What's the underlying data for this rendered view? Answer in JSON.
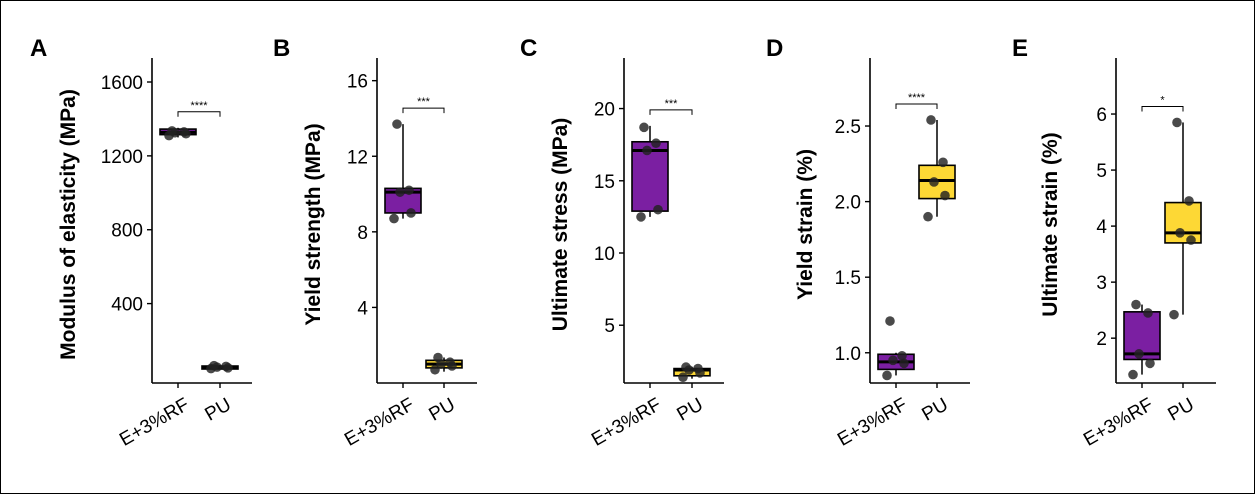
{
  "chart_data": [
    {
      "panel": "A",
      "type": "box",
      "ylabel": "Modulus of elasticity (MPa)",
      "categories": [
        "E+3%RF",
        "PU"
      ],
      "ylim": [
        -30,
        1730
      ],
      "yticks": [
        400,
        800,
        1200,
        1600
      ],
      "significance": "****",
      "boxes": [
        {
          "category": "E+3%RF",
          "fill": "#7B1FA2",
          "q1": 1315,
          "median": 1327,
          "q3": 1345,
          "whisker_low": 1300,
          "whisker_high": 1352,
          "points": [
            1310,
            1320,
            1325,
            1330,
            1335
          ]
        },
        {
          "category": "PU",
          "fill": "#FDD835",
          "q1": 50,
          "median": 55,
          "q3": 62,
          "whisker_low": 45,
          "whisker_high": 68,
          "points": [
            48,
            52,
            56,
            60,
            64
          ]
        }
      ]
    },
    {
      "panel": "B",
      "type": "box",
      "ylabel": "Yield strength (MPa)",
      "categories": [
        "E+3%RF",
        "PU"
      ],
      "ylim": [
        0,
        17.2
      ],
      "yticks": [
        4,
        8,
        12,
        16
      ],
      "significance": "***",
      "boxes": [
        {
          "category": "E+3%RF",
          "fill": "#7B1FA2",
          "q1": 9.0,
          "median": 10.1,
          "q3": 10.3,
          "whisker_low": 8.7,
          "whisker_high": 13.7,
          "points": [
            8.7,
            9.0,
            10.1,
            10.2,
            13.7
          ]
        },
        {
          "category": "PU",
          "fill": "#FDD835",
          "q1": 0.8,
          "median": 1.0,
          "q3": 1.2,
          "whisker_low": 0.6,
          "whisker_high": 1.35,
          "points": [
            0.7,
            0.9,
            1.0,
            1.1,
            1.35
          ]
        }
      ]
    },
    {
      "panel": "C",
      "type": "box",
      "ylabel": "Ultimate stress (MPa)",
      "categories": [
        "E+3%RF",
        "PU"
      ],
      "ylim": [
        1,
        23.5
      ],
      "yticks": [
        5,
        10,
        15,
        20
      ],
      "significance": "***",
      "boxes": [
        {
          "category": "E+3%RF",
          "fill": "#7B1FA2",
          "q1": 12.9,
          "median": 17.1,
          "q3": 17.7,
          "whisker_low": 12.5,
          "whisker_high": 18.8,
          "points": [
            12.5,
            13.0,
            17.1,
            17.6,
            18.7
          ]
        },
        {
          "category": "PU",
          "fill": "#FDD835",
          "q1": 1.5,
          "median": 1.9,
          "q3": 2.0,
          "whisker_low": 1.3,
          "whisker_high": 2.1,
          "points": [
            1.4,
            1.7,
            1.9,
            2.0,
            2.1
          ]
        }
      ]
    },
    {
      "panel": "D",
      "type": "box",
      "ylabel": "Yield strain (%)",
      "categories": [
        "E+3%RF",
        "PU"
      ],
      "ylim": [
        0.8,
        2.95
      ],
      "yticks": [
        1.0,
        1.5,
        2.0,
        2.5
      ],
      "ytick_labels": [
        "1.0",
        "1.5",
        "2.0",
        "2.5"
      ],
      "significance": "****",
      "boxes": [
        {
          "category": "E+3%RF",
          "fill": "#7B1FA2",
          "q1": 0.89,
          "median": 0.94,
          "q3": 0.99,
          "whisker_low": 0.85,
          "whisker_high": 1.0,
          "points": [
            0.85,
            0.93,
            0.95,
            0.98,
            1.21
          ]
        },
        {
          "category": "PU",
          "fill": "#FDD835",
          "q1": 2.02,
          "median": 2.14,
          "q3": 2.24,
          "whisker_low": 1.9,
          "whisker_high": 2.54,
          "points": [
            1.9,
            2.04,
            2.13,
            2.26,
            2.54
          ]
        }
      ]
    },
    {
      "panel": "E",
      "type": "box",
      "ylabel": "Ultimate strain (%)",
      "categories": [
        "E+3%RF",
        "PU"
      ],
      "ylim": [
        1.2,
        7.0
      ],
      "yticks": [
        2,
        3,
        4,
        5,
        6
      ],
      "significance": "*",
      "boxes": [
        {
          "category": "E+3%RF",
          "fill": "#7B1FA2",
          "q1": 1.62,
          "median": 1.72,
          "q3": 2.47,
          "whisker_low": 1.35,
          "whisker_high": 2.6,
          "points": [
            1.35,
            1.55,
            1.72,
            2.45,
            2.6
          ]
        },
        {
          "category": "PU",
          "fill": "#FDD835",
          "q1": 3.7,
          "median": 3.88,
          "q3": 4.42,
          "whisker_low": 2.42,
          "whisker_high": 5.85,
          "points": [
            2.42,
            3.75,
            3.88,
            4.45,
            5.85
          ]
        }
      ]
    }
  ]
}
